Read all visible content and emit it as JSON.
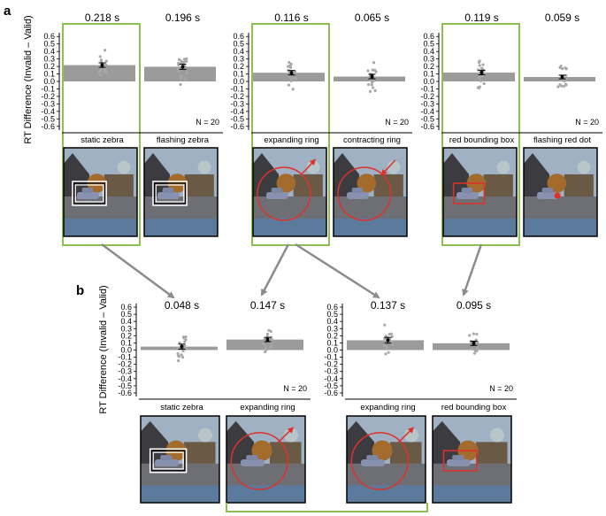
{
  "panel_labels": {
    "a": "a",
    "b": "b"
  },
  "y_axis_label": "RT Difference (Invalid – Valid)",
  "n_label": "N = 20",
  "colors": {
    "bar": "#9b9b9b",
    "dots": "#a8a8a8",
    "highlight": "#8cc152",
    "arrow": "#8c8c8c",
    "overlay_red": "#e0302b"
  },
  "chart_data": [
    {
      "type": "bar",
      "panel": "a",
      "group": 1,
      "categories": [
        "static zebra",
        "flashing zebra"
      ],
      "values": [
        0.218,
        0.196
      ],
      "value_labels": [
        "0.218 s",
        "0.196 s"
      ],
      "error": [
        0.03,
        0.035
      ],
      "ylim": [
        -0.65,
        0.65
      ],
      "yticks": [
        "-0.6",
        "-0.5",
        "-0.4",
        "-0.3",
        "-0.2",
        "-0.1",
        "0.0",
        "0.1",
        "0.2",
        "0.3",
        "0.4",
        "0.5",
        "0.6"
      ],
      "n": "N = 20",
      "highlighted": [
        "static zebra"
      ],
      "thumbnails": [
        "zebra-box",
        "zebra-box"
      ]
    },
    {
      "type": "bar",
      "panel": "a",
      "group": 2,
      "categories": [
        "expanding ring",
        "contracting ring"
      ],
      "values": [
        0.116,
        0.065
      ],
      "value_labels": [
        "0.116 s",
        "0.065 s"
      ],
      "error": [
        0.03,
        0.03
      ],
      "ylim": [
        -0.65,
        0.65
      ],
      "yticks": [
        "-0.6",
        "-0.5",
        "-0.4",
        "-0.3",
        "-0.2",
        "-0.1",
        "0.0",
        "0.1",
        "0.2",
        "0.3",
        "0.4",
        "0.5",
        "0.6"
      ],
      "n": "N = 20",
      "highlighted": [
        "expanding ring"
      ],
      "thumbnails": [
        "ring-out",
        "ring-in"
      ]
    },
    {
      "type": "bar",
      "panel": "a",
      "group": 3,
      "categories": [
        "red bounding box",
        "flashing red dot"
      ],
      "values": [
        0.119,
        0.059
      ],
      "value_labels": [
        "0.119 s",
        "0.059 s"
      ],
      "error": [
        0.03,
        0.025
      ],
      "ylim": [
        -0.65,
        0.65
      ],
      "yticks": [
        "-0.6",
        "-0.5",
        "-0.4",
        "-0.3",
        "-0.2",
        "-0.1",
        "0.0",
        "0.1",
        "0.2",
        "0.3",
        "0.4",
        "0.5",
        "0.6"
      ],
      "n": "N = 20",
      "highlighted": [
        "red bounding box"
      ],
      "thumbnails": [
        "red-box",
        "red-dot"
      ]
    },
    {
      "type": "bar",
      "panel": "b",
      "group": 1,
      "categories": [
        "static zebra",
        "expanding ring"
      ],
      "values": [
        0.048,
        0.147
      ],
      "value_labels": [
        "0.048 s",
        "0.147 s"
      ],
      "error": [
        0.035,
        0.03
      ],
      "ylim": [
        -0.65,
        0.65
      ],
      "yticks": [
        "-0.6",
        "-0.5",
        "-0.4",
        "-0.3",
        "-0.2",
        "-0.1",
        "0.0",
        "0.1",
        "0.2",
        "0.3",
        "0.4",
        "0.5",
        "0.6"
      ],
      "n": "N = 20",
      "highlighted": [],
      "thumbnails": [
        "zebra-box",
        "ring-out"
      ]
    },
    {
      "type": "bar",
      "panel": "b",
      "group": 2,
      "categories": [
        "expanding ring",
        "red bounding box"
      ],
      "values": [
        0.137,
        0.095
      ],
      "value_labels": [
        "0.137 s",
        "0.095 s"
      ],
      "error": [
        0.04,
        0.03
      ],
      "ylim": [
        -0.65,
        0.65
      ],
      "yticks": [
        "-0.6",
        "-0.5",
        "-0.4",
        "-0.3",
        "-0.2",
        "-0.1",
        "0.0",
        "0.1",
        "0.2",
        "0.3",
        "0.4",
        "0.5",
        "0.6"
      ],
      "n": "N = 20",
      "highlighted": [],
      "thumbnails": [
        "ring-out",
        "red-box"
      ]
    }
  ]
}
